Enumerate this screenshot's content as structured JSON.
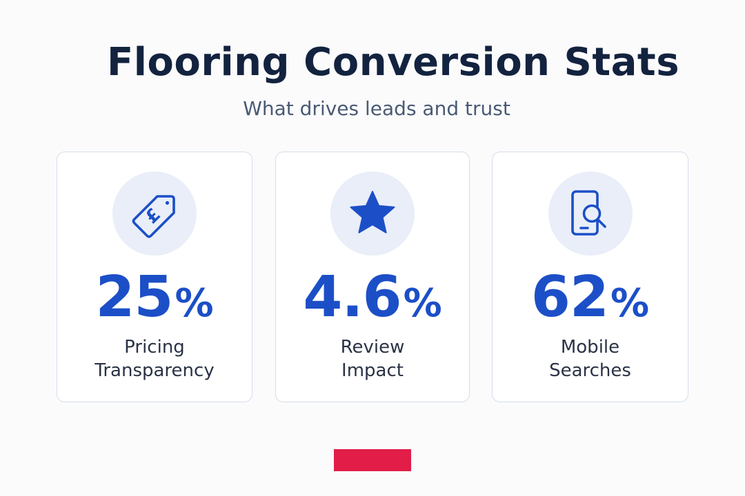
{
  "header": {
    "title": "Flooring Conversion Stats",
    "subtitle": "What drives leads and trust"
  },
  "cards": [
    {
      "icon": "pound-price-tag-icon",
      "value": "25",
      "unit": "%",
      "label_line1": "Pricing",
      "label_line2": "Transparency"
    },
    {
      "icon": "star-icon",
      "value": "4.6",
      "unit": "%",
      "label_line1": "Review",
      "label_line2": "Impact"
    },
    {
      "icon": "mobile-search-icon",
      "value": "62",
      "unit": "%",
      "label_line1": "Mobile",
      "label_line2": "Searches"
    }
  ],
  "colors": {
    "title": "#13233f",
    "subtitle": "#4a5a74",
    "accent_blue": "#1c4fc7",
    "icon_background": "#e9eef8",
    "card_border": "#d5dde9",
    "accent_bar": "#e11d48"
  }
}
